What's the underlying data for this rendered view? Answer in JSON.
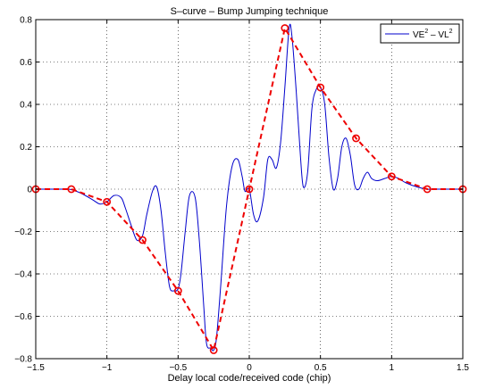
{
  "chart_data": {
    "type": "line",
    "title": "S–curve – Bump Jumping technique",
    "xlabel": "Delay local code/received code (chip)",
    "ylabel": "",
    "xlim": [
      -1.5,
      1.5
    ],
    "ylim": [
      -0.8,
      0.8
    ],
    "grid": true,
    "legend_position": "top-right",
    "x_ticks": [
      "−1.5",
      "−1",
      "−0.5",
      "0",
      "0.5",
      "1",
      "1.5"
    ],
    "x_tick_values": [
      -1.5,
      -1,
      -0.5,
      0,
      0.5,
      1,
      1.5
    ],
    "y_ticks": [
      "−0.8",
      "−0.6",
      "−0.4",
      "−0.2",
      "0",
      "0.2",
      "0.4",
      "0.6",
      "0.8"
    ],
    "y_tick_values": [
      -0.8,
      -0.6,
      -0.4,
      -0.2,
      0,
      0.2,
      0.4,
      0.6,
      0.8
    ],
    "legend": {
      "base1": "VE",
      "sup1": "2",
      "mid": " – VL",
      "sup2": "2"
    },
    "series": [
      {
        "color": "#0000cc",
        "style": "solid",
        "x": [
          -1.5,
          -1.3,
          -1.25,
          -1.18,
          -1.1,
          -1.05,
          -1.0,
          -0.95,
          -0.9,
          -0.87,
          -0.83,
          -0.79,
          -0.75,
          -0.72,
          -0.68,
          -0.65,
          -0.62,
          -0.59,
          -0.56,
          -0.53,
          -0.5,
          -0.48,
          -0.45,
          -0.42,
          -0.38,
          -0.35,
          -0.32,
          -0.3,
          -0.27,
          -0.25,
          -0.23,
          -0.2,
          -0.16,
          -0.12,
          -0.08,
          -0.05,
          -0.03,
          0.0,
          0.03,
          0.06,
          0.1,
          0.13,
          0.16,
          0.19,
          0.22,
          0.25,
          0.28,
          0.3,
          0.33,
          0.36,
          0.38,
          0.41,
          0.44,
          0.47,
          0.5,
          0.53,
          0.56,
          0.59,
          0.62,
          0.65,
          0.68,
          0.71,
          0.74,
          0.77,
          0.8,
          0.83,
          0.86,
          0.9,
          0.95,
          1.0,
          1.05,
          1.1,
          1.18,
          1.25,
          1.3,
          1.5
        ],
        "y": [
          0.0,
          0.0,
          -0.002,
          -0.02,
          -0.05,
          -0.07,
          -0.06,
          -0.03,
          -0.04,
          -0.09,
          -0.17,
          -0.24,
          -0.22,
          -0.12,
          -0.01,
          0.01,
          -0.1,
          -0.3,
          -0.46,
          -0.48,
          -0.47,
          -0.4,
          -0.2,
          -0.03,
          -0.04,
          -0.25,
          -0.55,
          -0.73,
          -0.75,
          -0.76,
          -0.7,
          -0.45,
          -0.08,
          0.11,
          0.14,
          0.06,
          -0.01,
          0.0,
          -0.12,
          -0.15,
          -0.04,
          0.14,
          0.14,
          0.1,
          0.22,
          0.48,
          0.76,
          0.72,
          0.46,
          0.15,
          0.01,
          0.08,
          0.38,
          0.47,
          0.48,
          0.4,
          0.15,
          0.0,
          0.05,
          0.2,
          0.24,
          0.16,
          0.02,
          0.0,
          0.05,
          0.08,
          0.05,
          0.04,
          0.05,
          0.06,
          0.05,
          0.03,
          0.01,
          0.0,
          0.0,
          0.0
        ]
      },
      {
        "color": "#ee0000",
        "style": "dashed",
        "markers": "circle",
        "x": [
          -1.5,
          -1.25,
          -1.0,
          -0.75,
          -0.5,
          -0.25,
          0.0,
          0.25,
          0.5,
          0.75,
          1.0,
          1.25,
          1.5
        ],
        "y": [
          0.0,
          0.0,
          -0.06,
          -0.24,
          -0.48,
          -0.76,
          0.0,
          0.76,
          0.48,
          0.24,
          0.06,
          0.0,
          0.0
        ]
      }
    ]
  }
}
